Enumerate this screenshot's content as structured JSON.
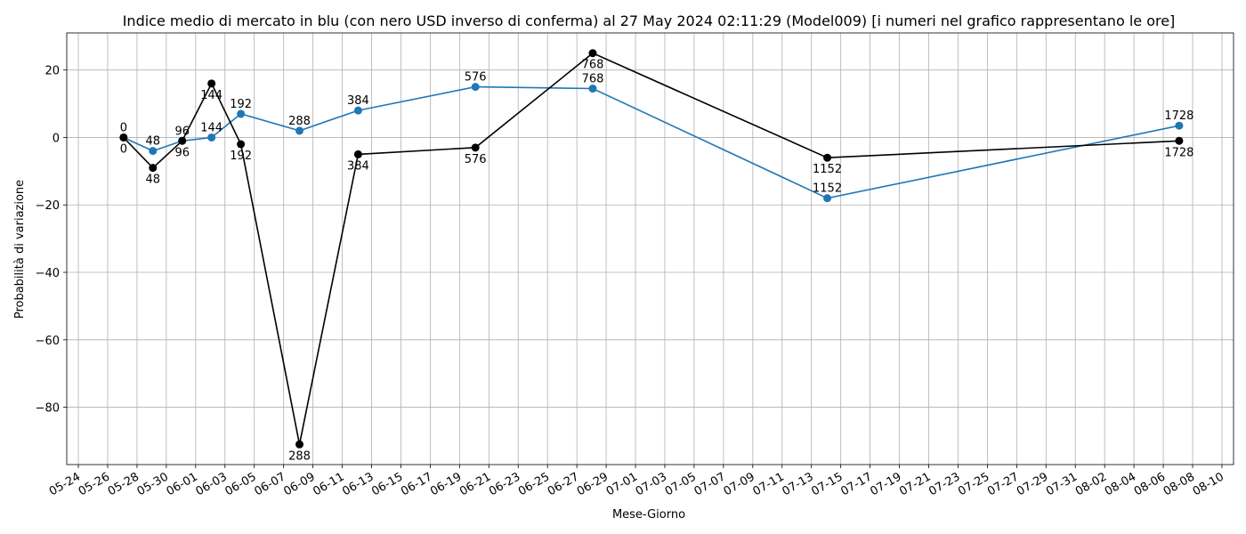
{
  "chart_data": {
    "type": "line",
    "title": "Indice medio di mercato in blu (con nero USD inverso di conferma) al 27 May 2024 02:11:29 (Model009) [i numeri nel grafico rappresentano le ore]",
    "xlabel": "Mese-Giorno",
    "ylabel": "Probabilità di variazione",
    "xlim": [
      "2024-05-23T05:00",
      "2024-08-10T19:00"
    ],
    "ylim": [
      -97,
      31
    ],
    "grid": true,
    "x_ticks": [
      "05-24",
      "05-26",
      "05-28",
      "05-30",
      "06-01",
      "06-03",
      "06-05",
      "06-07",
      "06-09",
      "06-11",
      "06-13",
      "06-15",
      "06-17",
      "06-19",
      "06-21",
      "06-23",
      "06-25",
      "06-27",
      "06-29",
      "07-01",
      "07-03",
      "07-05",
      "07-07",
      "07-09",
      "07-11",
      "07-13",
      "07-15",
      "07-17",
      "07-19",
      "07-21",
      "07-23",
      "07-25",
      "07-27",
      "07-29",
      "07-31",
      "08-02",
      "08-04",
      "08-06",
      "08-08",
      "08-10"
    ],
    "y_ticks": [
      20,
      0,
      -20,
      -40,
      -60,
      -80
    ],
    "y_tick_labels": [
      "20",
      "0",
      "−20",
      "−40",
      "−60",
      "−80"
    ],
    "series": [
      {
        "color": "#1f77b4",
        "label_position": "above",
        "points": [
          {
            "x": "2024-05-27T02:00",
            "y": 0,
            "label": "0"
          },
          {
            "x": "2024-05-29T02:00",
            "y": -4,
            "label": "48"
          },
          {
            "x": "2024-05-31T02:00",
            "y": -1,
            "label": "96"
          },
          {
            "x": "2024-06-02T02:00",
            "y": 0,
            "label": "144"
          },
          {
            "x": "2024-06-04T02:00",
            "y": 7,
            "label": "192"
          },
          {
            "x": "2024-06-08T02:00",
            "y": 2,
            "label": "288"
          },
          {
            "x": "2024-06-12T02:00",
            "y": 8,
            "label": "384"
          },
          {
            "x": "2024-06-20T02:00",
            "y": 15,
            "label": "576"
          },
          {
            "x": "2024-06-28T02:00",
            "y": 14.5,
            "label": "768"
          },
          {
            "x": "2024-07-14T02:00",
            "y": -18,
            "label": "1152"
          },
          {
            "x": "2024-08-07T02:00",
            "y": 3.5,
            "label": "1728"
          }
        ]
      },
      {
        "color": "#000000",
        "label_position": "below",
        "points": [
          {
            "x": "2024-05-27T02:00",
            "y": 0,
            "label": "0"
          },
          {
            "x": "2024-05-29T02:00",
            "y": -9,
            "label": "48"
          },
          {
            "x": "2024-05-31T02:00",
            "y": -1,
            "label": "96"
          },
          {
            "x": "2024-06-02T02:00",
            "y": 16,
            "label": "144"
          },
          {
            "x": "2024-06-04T02:00",
            "y": -2,
            "label": "192"
          },
          {
            "x": "2024-06-08T02:00",
            "y": -91,
            "label": "288"
          },
          {
            "x": "2024-06-12T02:00",
            "y": -5,
            "label": "384"
          },
          {
            "x": "2024-06-20T02:00",
            "y": -3,
            "label": "576"
          },
          {
            "x": "2024-06-28T02:00",
            "y": 25,
            "label": "768"
          },
          {
            "x": "2024-07-14T02:00",
            "y": -6,
            "label": "1152"
          },
          {
            "x": "2024-08-07T02:00",
            "y": -1,
            "label": "1728"
          }
        ]
      }
    ]
  }
}
